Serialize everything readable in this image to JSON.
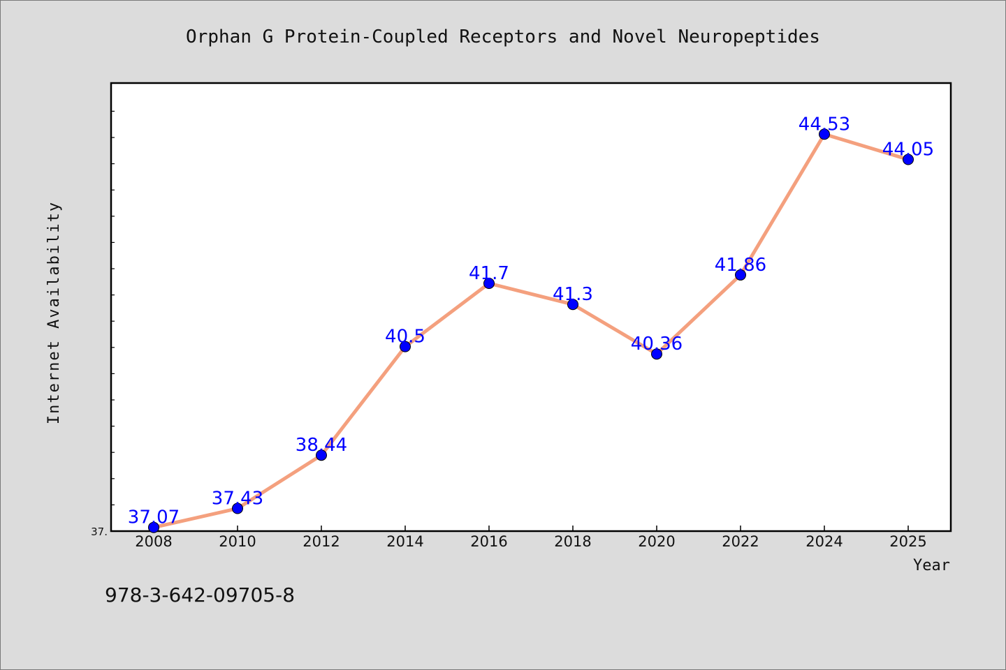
{
  "chart_data": {
    "type": "line",
    "title": "Orphan G Protein-Coupled Receptors and Novel Neuropeptides",
    "xlabel": "Year",
    "ylabel": "Internet Availability",
    "x": [
      "2008",
      "2010",
      "2012",
      "2014",
      "2016",
      "2018",
      "2020",
      "2022",
      "2024",
      "2025"
    ],
    "series": [
      {
        "values": [
          37.07,
          37.43,
          38.44,
          40.5,
          41.7,
          41.3,
          40.36,
          41.86,
          44.53,
          44.05
        ],
        "data_labels": [
          "37.07",
          "37.43",
          "38.44",
          "40.5",
          "41.7",
          "41.3",
          "40.36",
          "41.86",
          "44.53",
          "44.05"
        ],
        "line_color": "#f4a07e",
        "marker_color": "#0000ff"
      }
    ],
    "ylim": [
      37.0,
      45.5
    ],
    "y_min_label": "37.",
    "grid": false,
    "legend": "none"
  },
  "footer": {
    "isbn": "978-3-642-09705-8"
  }
}
